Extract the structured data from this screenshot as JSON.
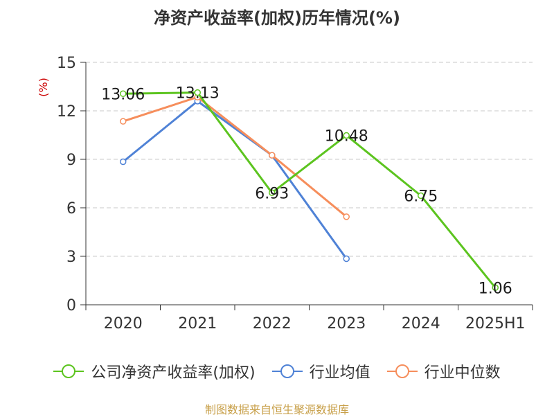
{
  "chart_data": {
    "type": "line",
    "title": "净资产收益率(加权)历年情况(%)",
    "ylabel": "(%)",
    "xlabel": "",
    "categories": [
      "2020",
      "2021",
      "2022",
      "2023",
      "2024",
      "2025H1"
    ],
    "ylim": [
      0,
      15
    ],
    "yticks": [
      0,
      3,
      6,
      9,
      12,
      15
    ],
    "grid": true,
    "legend_position": "bottom",
    "series": [
      {
        "name": "公司净资产收益率(加权)",
        "color": "#5cc41f",
        "values": [
          13.06,
          13.13,
          6.93,
          10.48,
          6.75,
          1.06
        ],
        "labels": [
          "13.06",
          "13.13",
          "6.93",
          "10.48",
          "6.75",
          "1.06"
        ]
      },
      {
        "name": "行业均值",
        "color": "#4f82d6",
        "values": [
          8.85,
          12.6,
          9.25,
          2.85,
          null,
          null
        ]
      },
      {
        "name": "行业中位数",
        "color": "#f68e5c",
        "values": [
          11.35,
          12.85,
          9.25,
          5.45,
          null,
          null
        ]
      }
    ]
  },
  "footer": {
    "source": "制图数据来自恒生聚源数据库"
  }
}
